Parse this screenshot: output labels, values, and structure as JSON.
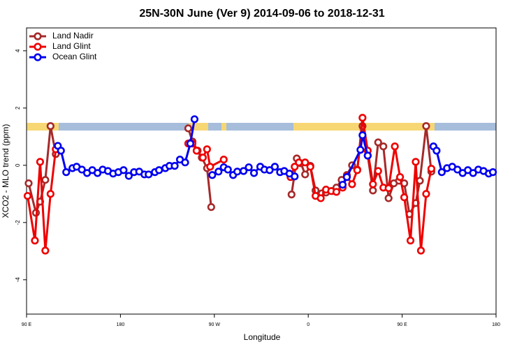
{
  "chart_data": {
    "type": "line",
    "title": "25N-30N June (Ver 9)   2014-09-06 to 2018-12-31",
    "x_label": "Longitude",
    "y_label": "XCO2 - MLO trend (ppm)",
    "xlim": [
      90,
      540
    ],
    "xticks": [
      {
        "value": 90,
        "label": "90 E"
      },
      180,
      {
        "value": 270,
        "label": "90 W"
      },
      {
        "value": 360,
        "label": "0"
      },
      {
        "value": 450,
        "label": "90 E"
      },
      {
        "value": 540,
        "label": "180"
      }
    ],
    "ylim": [
      -5.2,
      4.8
    ],
    "yticks": [
      -4,
      -2,
      0,
      2,
      4
    ],
    "legend": "top-left",
    "series": [
      {
        "name": "Land Nadir",
        "color": "#a52a2a",
        "x": [
          92,
          99,
          103,
          108,
          113,
          118,
          null,
          245,
          249,
          254,
          258,
          263,
          267,
          null,
          344,
          349,
          353,
          357,
          362,
          367,
          373,
          377,
          383,
          387,
          392,
          397,
          402,
          407,
          412,
          417,
          422,
          427,
          432,
          437,
          442,
          447,
          452,
          457,
          463,
          467,
          473,
          478
        ],
        "values": [
          -0.63,
          -1.66,
          -1.27,
          -0.51,
          1.37,
          0.39,
          null,
          1.29,
          0.83,
          0.51,
          0.27,
          -0.1,
          -1.46,
          null,
          -1.02,
          0.24,
          0.07,
          -0.32,
          -0.02,
          -0.88,
          -0.98,
          -0.95,
          -0.9,
          -0.78,
          -0.51,
          -0.34,
          0,
          -0.15,
          1.37,
          0.34,
          -0.88,
          0.8,
          0.66,
          -1.15,
          -0.63,
          -0.54,
          -0.63,
          -1.71,
          -1.32,
          -0.54,
          1.37,
          -0.22
        ]
      },
      {
        "name": "Land Glint",
        "color": "#ee0000",
        "x": [
          91,
          98,
          103,
          108,
          113,
          118,
          null,
          245,
          249,
          253,
          259,
          263,
          266,
          279,
          null,
          343,
          347,
          351,
          357,
          362,
          367,
          372,
          377,
          382,
          387,
          393,
          397,
          402,
          407,
          412,
          417,
          422,
          427,
          432,
          437,
          443,
          448,
          452,
          458,
          463,
          468,
          473,
          478
        ],
        "values": [
          -1.07,
          -2.63,
          0.12,
          -2.98,
          -1.0,
          0.56,
          null,
          0.76,
          0.76,
          0.51,
          0.27,
          0.56,
          -0.05,
          0.2,
          null,
          -0.41,
          -0.05,
          0.1,
          0.1,
          -0.05,
          -1.07,
          -1.15,
          -0.85,
          -0.9,
          -0.93,
          -0.78,
          -0.39,
          -0.66,
          -0.17,
          1.66,
          0.51,
          -0.66,
          -0.2,
          -0.78,
          -0.8,
          0.66,
          -0.41,
          -1.12,
          -2.63,
          0.12,
          -2.98,
          -1.0,
          -0.12
        ]
      },
      {
        "name": "Ocean Glint",
        "color": "#0000ee",
        "x": [
          120,
          123,
          128,
          134,
          138,
          143,
          148,
          153,
          158,
          163,
          168,
          173,
          178,
          183,
          188,
          193,
          198,
          203,
          207,
          213,
          217,
          223,
          227,
          232,
          237,
          242,
          247,
          251,
          null,
          268,
          274,
          279,
          283,
          288,
          292,
          298,
          303,
          308,
          314,
          318,
          323,
          328,
          333,
          337,
          342,
          347,
          null,
          393,
          397,
          410,
          412,
          417,
          null,
          480,
          483,
          488,
          493,
          498,
          503,
          508,
          513,
          518,
          523,
          528,
          533,
          537
        ],
        "values": [
          0.68,
          0.51,
          -0.24,
          -0.1,
          -0.05,
          -0.15,
          -0.27,
          -0.17,
          -0.27,
          -0.15,
          -0.2,
          -0.29,
          -0.24,
          -0.17,
          -0.37,
          -0.24,
          -0.22,
          -0.32,
          -0.32,
          -0.24,
          -0.17,
          -0.1,
          -0.02,
          -0.02,
          0.2,
          0.1,
          0.76,
          1.61,
          null,
          -0.34,
          -0.22,
          -0.07,
          -0.15,
          -0.34,
          -0.22,
          -0.2,
          -0.07,
          -0.27,
          -0.05,
          -0.15,
          -0.17,
          -0.05,
          -0.24,
          -0.2,
          -0.29,
          -0.39,
          null,
          -0.68,
          -0.41,
          0.54,
          1.05,
          0.34,
          null,
          0.66,
          0.51,
          -0.24,
          -0.1,
          -0.05,
          -0.15,
          -0.27,
          -0.17,
          -0.27,
          -0.15,
          -0.2,
          -0.29,
          -0.24
        ]
      }
    ]
  }
}
